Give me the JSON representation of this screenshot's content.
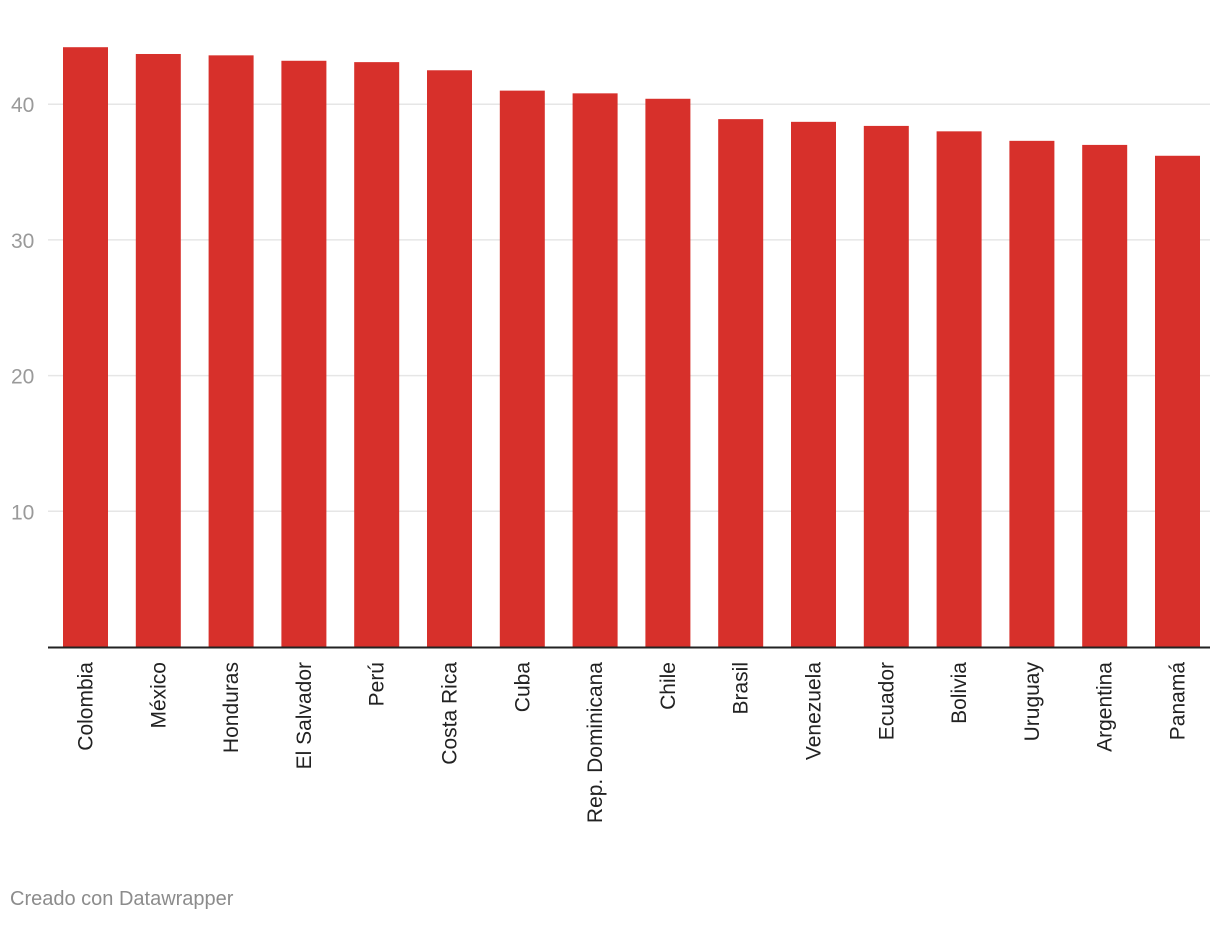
{
  "chart_data": {
    "type": "bar",
    "title": "",
    "xlabel": "",
    "ylabel": "",
    "ylim": [
      0,
      44.2
    ],
    "yticks": [
      10,
      20,
      30,
      40
    ],
    "grid": true,
    "bar_color": "#d7302b",
    "categories": [
      "Colombia",
      "México",
      "Honduras",
      "El Salvador",
      "Perú",
      "Costa Rica",
      "Cuba",
      "Rep. Dominicana",
      "Chile",
      "Brasil",
      "Venezuela",
      "Ecuador",
      "Bolivia",
      "Uruguay",
      "Argentina",
      "Panamá"
    ],
    "values": [
      44.2,
      43.7,
      43.6,
      43.2,
      43.1,
      42.5,
      41.0,
      40.8,
      40.4,
      38.9,
      38.7,
      38.4,
      38.0,
      37.3,
      37.0,
      36.2
    ]
  },
  "footer": {
    "credit": "Creado con Datawrapper"
  }
}
